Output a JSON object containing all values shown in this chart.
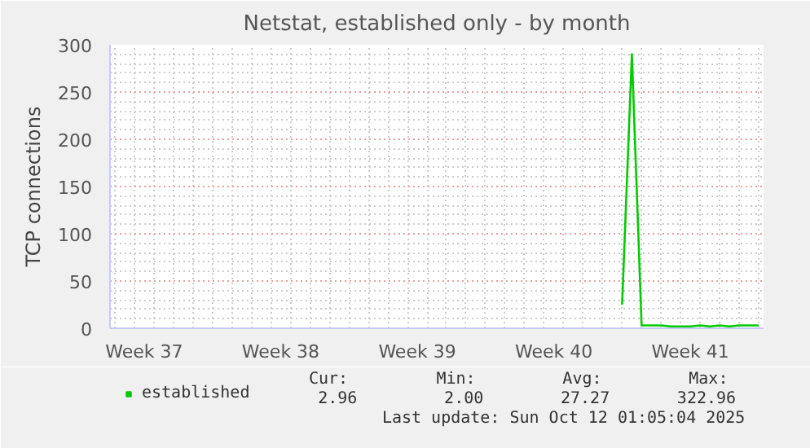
{
  "chart_data": {
    "type": "line",
    "title": "Netstat, established only - by month",
    "ylabel": "TCP connections",
    "categories": [
      null,
      null,
      null,
      "Week 37",
      null,
      null,
      null,
      null,
      null,
      null,
      null,
      null,
      null,
      null,
      null,
      null,
      null,
      "Week 38",
      null,
      null,
      null,
      null,
      null,
      null,
      null,
      null,
      null,
      null,
      null,
      null,
      null,
      "Week 39",
      null,
      null,
      null,
      null,
      null,
      null,
      null,
      null,
      null,
      null,
      null,
      null,
      null,
      "Week 40",
      null,
      null,
      null,
      null,
      null,
      null,
      null,
      null,
      null,
      null,
      null,
      null,
      null,
      "Week 41",
      null,
      null,
      null,
      null,
      null,
      null,
      null
    ],
    "series": [
      {
        "name": "established",
        "color": "#00cc00",
        "values": [
          null,
          null,
          null,
          null,
          null,
          null,
          null,
          null,
          null,
          null,
          null,
          null,
          null,
          null,
          null,
          null,
          null,
          null,
          null,
          null,
          null,
          null,
          null,
          null,
          null,
          null,
          null,
          null,
          null,
          null,
          null,
          null,
          null,
          null,
          null,
          null,
          null,
          null,
          null,
          null,
          null,
          null,
          null,
          null,
          null,
          null,
          null,
          null,
          null,
          null,
          null,
          null,
          25,
          290,
          3,
          3,
          3,
          2,
          2,
          2,
          3,
          2,
          3,
          2,
          3,
          3,
          3
        ]
      }
    ],
    "ylim": [
      0,
      300
    ],
    "yticks": [
      0,
      50,
      100,
      150,
      200,
      250,
      300
    ],
    "grid": true,
    "legend": "bottom left",
    "marker": "none",
    "line_style": "solid",
    "annotations": [
      "Cur:",
      "Min:",
      "Avg:",
      "Max:",
      "2.96",
      "2.00",
      "27.27",
      "322.96",
      "Last update: Sun Oct 12 01:05:04 2025"
    ]
  }
}
